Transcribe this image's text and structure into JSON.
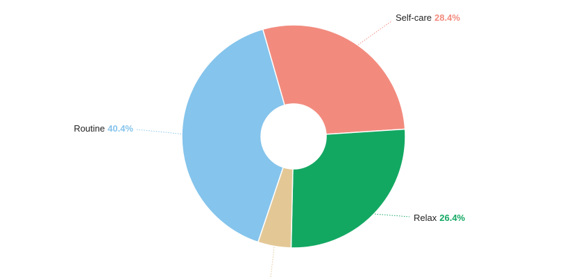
{
  "chart_data": {
    "type": "donut",
    "categories": [
      "Self-care",
      "Relax",
      null,
      "Routine"
    ],
    "values": [
      28.4,
      26.4,
      4.8,
      40.4
    ],
    "value_labels": [
      "28.4%",
      "26.4%",
      null,
      "40.4%"
    ],
    "colors": [
      "#f28b7e",
      "#13a862",
      "#e3c896",
      "#85c4ec"
    ]
  }
}
